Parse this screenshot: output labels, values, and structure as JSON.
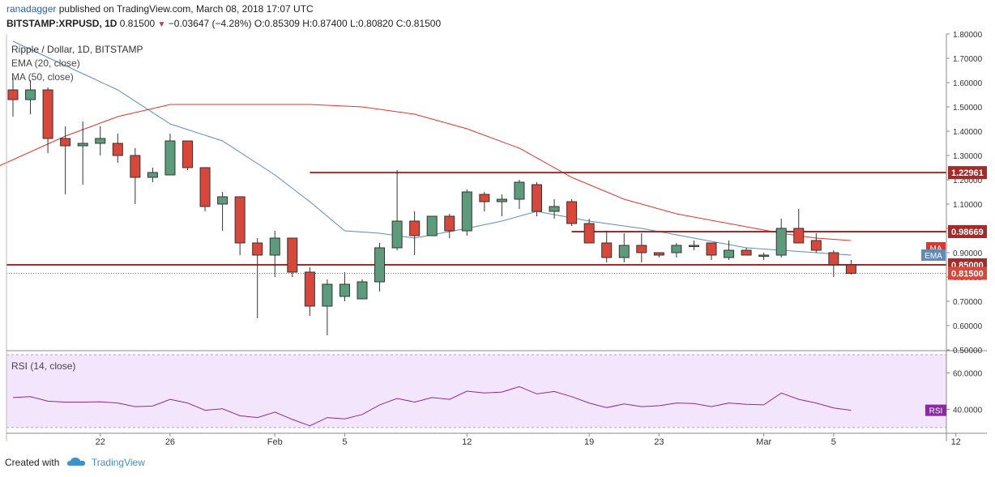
{
  "header": {
    "author": "ranadagger",
    "published": "published on TradingView.com, March 08, 2018 17:07 UTC",
    "symbol": "BITSTAMP:XRPUSD, 1D",
    "last": "0.81500",
    "change": "−0.03647 (−4.28%)",
    "o_label": "O:",
    "o": "0.85309",
    "h_label": "H:",
    "h": "0.87400",
    "l_label": "L:",
    "l": "0.80820",
    "c_label": "C:",
    "c": "0.81500"
  },
  "legend": {
    "title": "Ripple / Dollar, 1D, BITSTAMP",
    "ema": "EMA (20, close)",
    "ma": "MA (50, close)",
    "rsi": "RSI (14, close)"
  },
  "footer": {
    "created_with": "Created with",
    "brand": "TradingView"
  },
  "colors": {
    "up": "#5c9c7c",
    "down": "#d9473a",
    "ema": "#5b8db8",
    "ma": "#e5332a",
    "level": "#a52a2a",
    "rsi_line": "#8a2aa0",
    "rsi_bg": "#f3e5fb",
    "axis": "#555555"
  },
  "chart_data": {
    "type": "candlestick",
    "title": "Ripple / Dollar, 1D, BITSTAMP",
    "ylim": [
      0.5,
      1.8
    ],
    "y_ticks": [
      "0.50000",
      "0.60000",
      "0.70000",
      "0.80000",
      "0.90000",
      "1.00000",
      "1.10000",
      "1.20000",
      "1.30000",
      "1.40000",
      "1.50000",
      "1.60000",
      "1.70000",
      "1.80000"
    ],
    "x_ticks": [
      {
        "label": "22",
        "x": 21.0
      },
      {
        "label": "26",
        "x": 25.0
      },
      {
        "label": "Feb",
        "x": 31.0
      },
      {
        "label": "5",
        "x": 35.0
      },
      {
        "label": "12",
        "x": 42.0
      },
      {
        "label": "19",
        "x": 49.0
      },
      {
        "label": "23",
        "x": 53.0
      },
      {
        "label": "Mar",
        "x": 59.0
      },
      {
        "label": "5",
        "x": 63.0
      },
      {
        "label": "12",
        "x": 70.0
      }
    ],
    "candles": [
      [
        16,
        1.57,
        1.62,
        1.46,
        1.53
      ],
      [
        17,
        1.53,
        1.61,
        1.47,
        1.57
      ],
      [
        18,
        1.57,
        1.58,
        1.31,
        1.37
      ],
      [
        19,
        1.37,
        1.42,
        1.14,
        1.34
      ],
      [
        20,
        1.34,
        1.44,
        1.18,
        1.35
      ],
      [
        21,
        1.35,
        1.42,
        1.3,
        1.37
      ],
      [
        22,
        1.35,
        1.39,
        1.27,
        1.3
      ],
      [
        23,
        1.3,
        1.33,
        1.1,
        1.21
      ],
      [
        24,
        1.21,
        1.25,
        1.19,
        1.23
      ],
      [
        25,
        1.22,
        1.39,
        1.22,
        1.36
      ],
      [
        26,
        1.36,
        1.36,
        1.24,
        1.25
      ],
      [
        27,
        1.25,
        1.25,
        1.07,
        1.09
      ],
      [
        28,
        1.1,
        1.15,
        0.99,
        1.13
      ],
      [
        29,
        1.13,
        1.13,
        0.89,
        0.94
      ],
      [
        30,
        0.94,
        0.96,
        0.63,
        0.89
      ],
      [
        31,
        0.89,
        0.99,
        0.8,
        0.96
      ],
      [
        32,
        0.96,
        0.96,
        0.8,
        0.82
      ],
      [
        33,
        0.82,
        0.84,
        0.64,
        0.68
      ],
      [
        34,
        0.68,
        0.79,
        0.56,
        0.77
      ],
      [
        35,
        0.72,
        0.82,
        0.7,
        0.77
      ],
      [
        36,
        0.71,
        0.79,
        0.71,
        0.78
      ],
      [
        37,
        0.78,
        0.94,
        0.74,
        0.92
      ],
      [
        38,
        0.92,
        1.24,
        0.91,
        1.03
      ],
      [
        39,
        1.03,
        1.07,
        0.89,
        0.97
      ],
      [
        40,
        0.97,
        1.04,
        0.97,
        1.05
      ],
      [
        41,
        1.05,
        1.06,
        0.96,
        0.99
      ],
      [
        42,
        0.99,
        1.16,
        0.97,
        1.15
      ],
      [
        43,
        1.14,
        1.15,
        1.07,
        1.11
      ],
      [
        44,
        1.11,
        1.14,
        1.05,
        1.12
      ],
      [
        45,
        1.12,
        1.2,
        1.08,
        1.19
      ],
      [
        46,
        1.18,
        1.19,
        1.05,
        1.07
      ],
      [
        47,
        1.07,
        1.12,
        1.04,
        1.09
      ],
      [
        48,
        1.11,
        1.12,
        1.01,
        1.02
      ],
      [
        49,
        1.02,
        1.04,
        0.94,
        0.94
      ],
      [
        50,
        0.94,
        0.99,
        0.86,
        0.88
      ],
      [
        51,
        0.88,
        0.98,
        0.86,
        0.93
      ],
      [
        52,
        0.93,
        0.98,
        0.86,
        0.9
      ],
      [
        53,
        0.9,
        0.9,
        0.88,
        0.89
      ],
      [
        54,
        0.9,
        0.94,
        0.88,
        0.93
      ],
      [
        55,
        0.93,
        0.95,
        0.91,
        0.93
      ],
      [
        56,
        0.94,
        0.94,
        0.87,
        0.89
      ],
      [
        57,
        0.88,
        0.95,
        0.87,
        0.91
      ],
      [
        58,
        0.91,
        0.92,
        0.89,
        0.89
      ],
      [
        59,
        0.89,
        0.9,
        0.87,
        0.89
      ],
      [
        60,
        0.89,
        1.04,
        0.88,
        1.0
      ],
      [
        61,
        1.0,
        1.08,
        0.94,
        0.94
      ],
      [
        62,
        0.95,
        0.98,
        0.9,
        0.91
      ],
      [
        63,
        0.9,
        0.91,
        0.8,
        0.85
      ],
      [
        64,
        0.85,
        0.87,
        0.81,
        0.815
      ]
    ],
    "ema20": [
      [
        16,
        1.77
      ],
      [
        19,
        1.67
      ],
      [
        22,
        1.57
      ],
      [
        25,
        1.43
      ],
      [
        28,
        1.36
      ],
      [
        31,
        1.22
      ],
      [
        33,
        1.11
      ],
      [
        35,
        0.99
      ],
      [
        37,
        0.98
      ],
      [
        39,
        0.96
      ],
      [
        42,
        1.0
      ],
      [
        44,
        1.03
      ],
      [
        46,
        1.07
      ],
      [
        49,
        1.03
      ],
      [
        52,
        1.0
      ],
      [
        55,
        0.96
      ],
      [
        58,
        0.92
      ],
      [
        60,
        0.91
      ],
      [
        62,
        0.9
      ],
      [
        64,
        0.89
      ]
    ],
    "ma50": [
      [
        15,
        1.25
      ],
      [
        19,
        1.38
      ],
      [
        22,
        1.46
      ],
      [
        25,
        1.51
      ],
      [
        27,
        1.51
      ],
      [
        29,
        1.51
      ],
      [
        31,
        1.51
      ],
      [
        33,
        1.51
      ],
      [
        36,
        1.5
      ],
      [
        39,
        1.47
      ],
      [
        42,
        1.41
      ],
      [
        45,
        1.33
      ],
      [
        48,
        1.21
      ],
      [
        51,
        1.12
      ],
      [
        54,
        1.06
      ],
      [
        57,
        1.02
      ],
      [
        60,
        0.98
      ],
      [
        62,
        0.96
      ],
      [
        64,
        0.95
      ]
    ],
    "levels": [
      {
        "value": 1.22961,
        "label": "1.22961",
        "from": 33
      },
      {
        "value": 0.98669,
        "label": "0.98669",
        "from": 48
      },
      {
        "value": 0.85,
        "label": "0.85000",
        "from": 0
      }
    ],
    "last_price": {
      "value": 0.815,
      "label": "0.81500"
    },
    "tags": {
      "ma": "MA",
      "ema": "EMA",
      "rsi": "RSI"
    },
    "rsi": {
      "ylim": [
        30,
        70
      ],
      "ticks": [
        "60.0000",
        "40.0000"
      ],
      "values": [
        [
          16,
          46.5
        ],
        [
          17,
          47.0
        ],
        [
          18,
          44.5
        ],
        [
          19,
          44.0
        ],
        [
          20,
          44.0
        ],
        [
          21,
          44.2
        ],
        [
          22,
          43.5
        ],
        [
          23,
          41.5
        ],
        [
          24,
          41.8
        ],
        [
          25,
          45.5
        ],
        [
          26,
          43.5
        ],
        [
          27,
          39.5
        ],
        [
          28,
          40.3
        ],
        [
          29,
          36.5
        ],
        [
          30,
          35.5
        ],
        [
          31,
          38.5
        ],
        [
          32,
          34.5
        ],
        [
          33,
          31.0
        ],
        [
          34,
          35.5
        ],
        [
          35,
          34.8
        ],
        [
          36,
          37.2
        ],
        [
          37,
          42.5
        ],
        [
          38,
          46.0
        ],
        [
          39,
          44.0
        ],
        [
          40,
          46.5
        ],
        [
          41,
          45.5
        ],
        [
          42,
          50.0
        ],
        [
          43,
          49.0
        ],
        [
          44,
          49.5
        ],
        [
          45,
          52.5
        ],
        [
          46,
          48.5
        ],
        [
          47,
          49.8
        ],
        [
          48,
          47.0
        ],
        [
          49,
          43.5
        ],
        [
          50,
          41.0
        ],
        [
          51,
          43.0
        ],
        [
          52,
          41.5
        ],
        [
          53,
          42.0
        ],
        [
          54,
          43.5
        ],
        [
          55,
          43.2
        ],
        [
          56,
          41.5
        ],
        [
          57,
          43.5
        ],
        [
          58,
          42.8
        ],
        [
          59,
          42.5
        ],
        [
          60,
          49.0
        ],
        [
          61,
          45.5
        ],
        [
          62,
          43.5
        ],
        [
          63,
          40.8
        ],
        [
          64,
          39.5
        ]
      ]
    }
  }
}
